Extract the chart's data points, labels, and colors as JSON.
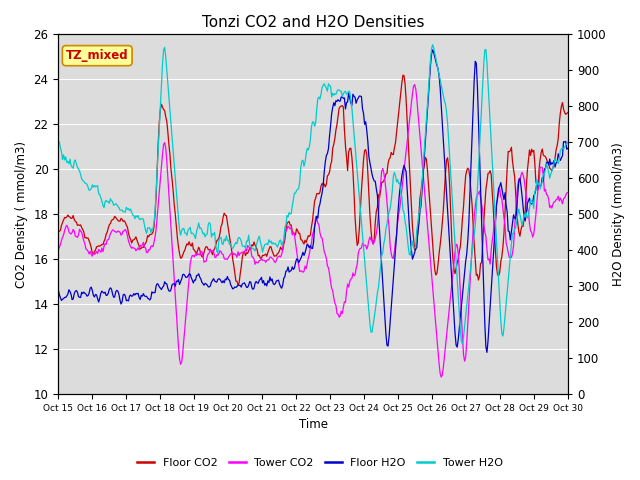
{
  "title": "Tonzi CO2 and H2O Densities",
  "xlabel": "Time",
  "ylabel_left": "CO2 Density ( mmol/m3)",
  "ylabel_right": "H2O Density (mmol/m3)",
  "annotation_text": "TZ_mixed",
  "annotation_bg": "#FFFF99",
  "annotation_border": "#CC8800",
  "ylim_left": [
    10,
    26
  ],
  "ylim_right": [
    0,
    1000
  ],
  "xtick_labels": [
    "Oct 15",
    "Oct 16",
    "Oct 17",
    "Oct 18",
    "Oct 19",
    "Oct 20",
    "Oct 21",
    "Oct 22",
    "Oct 23",
    "Oct 24",
    "Oct 25",
    "Oct 26",
    "Oct 27",
    "Oct 28",
    "Oct 29",
    "Oct 30"
  ],
  "colors": {
    "floor_co2": "#CC0000",
    "tower_co2": "#FF00FF",
    "floor_h2o": "#0000CC",
    "tower_h2o": "#00CCCC"
  },
  "legend_labels": [
    "Floor CO2",
    "Tower CO2",
    "Floor H2O",
    "Tower H2O"
  ],
  "background_color": "#DCDCDC",
  "grid_color": "#FFFFFF",
  "title_fontsize": 11
}
